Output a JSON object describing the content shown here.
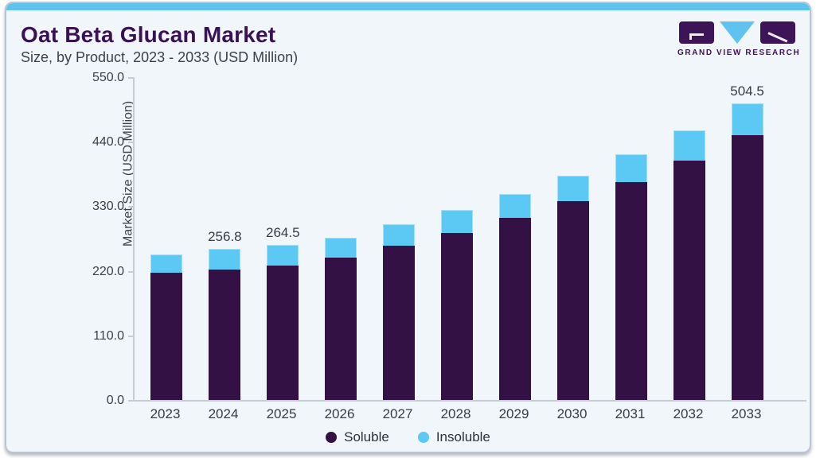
{
  "header": {
    "title": "Oat Beta Glucan Market",
    "subtitle": "Size, by Product, 2023 - 2033 (USD Million)",
    "brand": "GRAND VIEW RESEARCH"
  },
  "colors": {
    "accent_strip": "#5ec3ee",
    "title_purple": "#3b1156",
    "soluble_purple": "#341144",
    "insoluble_blue": "#5cc9f5",
    "card_background": "#f1f6fa",
    "axis_gray": "#c5ccd6",
    "text_gray": "#3a3a44"
  },
  "chart_data": {
    "type": "bar",
    "stacked": true,
    "title": "Oat Beta Glucan Market Size, by Product, 2023 - 2033 (USD Million)",
    "categories": [
      "2023",
      "2024",
      "2025",
      "2026",
      "2027",
      "2028",
      "2029",
      "2030",
      "2031",
      "2032",
      "2033"
    ],
    "series": [
      {
        "name": "Soluble",
        "color": "#341144",
        "values": [
          216.2,
          222.0,
          229.0,
          242.0,
          262.5,
          285.0,
          310.5,
          338.5,
          371.0,
          407.5,
          450.5
        ]
      },
      {
        "name": "Insoluble",
        "color": "#5cc9f5",
        "values": [
          31.7,
          34.8,
          35.5,
          34.3,
          36.0,
          39.0,
          40.5,
          43.5,
          47.5,
          51.5,
          54.0
        ]
      }
    ],
    "totals": [
      247.9,
      256.8,
      264.5,
      276.3,
      298.5,
      324.0,
      351.0,
      382.0,
      418.5,
      459.0,
      504.5
    ],
    "bar_labels": [
      "",
      "256.8",
      "264.5",
      "",
      "",
      "",
      "",
      "",
      "",
      "",
      "504.5"
    ],
    "ylabel": "Market Size (USD Million)",
    "xlabel": "",
    "yticks": [
      "550.0",
      "440.0",
      "330.0",
      "220.0",
      "110.0",
      "0.0"
    ],
    "ylim": [
      0,
      550
    ],
    "grid": false,
    "legend_position": "bottom",
    "legend": [
      "Soluble",
      "Insoluble"
    ]
  }
}
